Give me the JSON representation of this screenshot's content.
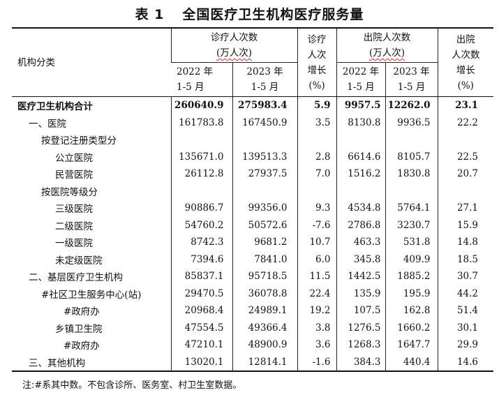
{
  "title": {
    "number": "表 1",
    "text": "全国医疗卫生机构医疗服务量"
  },
  "header": {
    "category": "机构分类",
    "visits_group_line1": "诊疗人次数",
    "visits_group_line2": "(万人次)",
    "visits_growth_line1": "诊疗",
    "visits_growth_line2": "人次",
    "visits_growth_line3": "增长",
    "visits_growth_line4": "(%)",
    "discharge_group_line1": "出院人次数",
    "discharge_group_line2": "(万人次)",
    "discharge_growth_line1": "出院",
    "discharge_growth_line2": "人次数",
    "discharge_growth_line3": "增长",
    "discharge_growth_line4": "(%)",
    "period_2022_line1": "2022 年",
    "period_2022_line2": "1-5 月",
    "period_2023_line1": "2023 年",
    "period_2023_line2": "1-5 月",
    "dperiod_2022_line1": "2022 年",
    "dperiod_2022_line2": "1-5 月",
    "dperiod_2023_line1": "2023 年",
    "dperiod_2023_line2": "1-5 月"
  },
  "rows": [
    {
      "label": "医疗卫生机构合计",
      "v2022": "260640.9",
      "v2023": "275983.4",
      "vgrowth": "5.9",
      "d2022": "9957.5",
      "d2023": "12262.0",
      "dgrowth": "23.1"
    },
    {
      "label": "一、医院",
      "v2022": "161783.8",
      "v2023": "167450.9",
      "vgrowth": "3.5",
      "d2022": "8130.8",
      "d2023": "9936.5",
      "dgrowth": "22.2"
    },
    {
      "label": "按登记注册类型分",
      "v2022": "",
      "v2023": "",
      "vgrowth": "",
      "d2022": "",
      "d2023": "",
      "dgrowth": ""
    },
    {
      "label": "公立医院",
      "v2022": "135671.0",
      "v2023": "139513.3",
      "vgrowth": "2.8",
      "d2022": "6614.6",
      "d2023": "8105.7",
      "dgrowth": "22.5"
    },
    {
      "label": "民营医院",
      "v2022": "26112.8",
      "v2023": "27937.5",
      "vgrowth": "7.0",
      "d2022": "1516.2",
      "d2023": "1830.8",
      "dgrowth": "20.7"
    },
    {
      "label": "按医院等级分",
      "v2022": "",
      "v2023": "",
      "vgrowth": "",
      "d2022": "",
      "d2023": "",
      "dgrowth": ""
    },
    {
      "label": "三级医院",
      "v2022": "90886.7",
      "v2023": "99356.0",
      "vgrowth": "9.3",
      "d2022": "4534.8",
      "d2023": "5764.1",
      "dgrowth": "27.1"
    },
    {
      "label": "二级医院",
      "v2022": "54760.2",
      "v2023": "50572.6",
      "vgrowth": "-7.6",
      "d2022": "2786.8",
      "d2023": "3230.7",
      "dgrowth": "15.9"
    },
    {
      "label": "一级医院",
      "v2022": "8742.3",
      "v2023": "9681.2",
      "vgrowth": "10.7",
      "d2022": "463.3",
      "d2023": "531.8",
      "dgrowth": "14.8"
    },
    {
      "label": "未定级医院",
      "v2022": "7394.6",
      "v2023": "7841.0",
      "vgrowth": "6.0",
      "d2022": "345.8",
      "d2023": "409.9",
      "dgrowth": "18.5"
    },
    {
      "label": "二、基层医疗卫生机构",
      "v2022": "85837.1",
      "v2023": "95718.5",
      "vgrowth": "11.5",
      "d2022": "1442.5",
      "d2023": "1885.2",
      "dgrowth": "30.7"
    },
    {
      "label": "#社区卫生服务中心(站)",
      "v2022": "29470.5",
      "v2023": "36078.8",
      "vgrowth": "22.4",
      "d2022": "135.9",
      "d2023": "195.9",
      "dgrowth": "44.2"
    },
    {
      "label": "#政府办",
      "v2022": "20968.4",
      "v2023": "24989.1",
      "vgrowth": "19.2",
      "d2022": "107.5",
      "d2023": "162.8",
      "dgrowth": "51.4"
    },
    {
      "label": "乡镇卫生院",
      "v2022": "47554.5",
      "v2023": "49366.4",
      "vgrowth": "3.8",
      "d2022": "1276.5",
      "d2023": "1660.2",
      "dgrowth": "30.1"
    },
    {
      "label": "#政府办",
      "v2022": "47210.1",
      "v2023": "48900.9",
      "vgrowth": "3.6",
      "d2022": "1268.3",
      "d2023": "1647.7",
      "dgrowth": "29.9"
    },
    {
      "label": "三、其他机构",
      "v2022": "13020.1",
      "v2023": "12814.1",
      "vgrowth": "-1.6",
      "d2022": "384.3",
      "d2023": "440.4",
      "dgrowth": "14.6"
    }
  ],
  "note": "注:#系其中数。不包含诊所、医务室、村卫生室数据。"
}
